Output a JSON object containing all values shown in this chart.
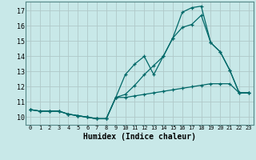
{
  "xlabel": "Humidex (Indice chaleur)",
  "background_color": "#c8e8e8",
  "grid_color": "#b0c8c8",
  "line_color": "#006868",
  "xlim": [
    -0.5,
    23.5
  ],
  "ylim": [
    9.5,
    17.6
  ],
  "xticks": [
    0,
    1,
    2,
    3,
    4,
    5,
    6,
    7,
    8,
    9,
    10,
    11,
    12,
    13,
    14,
    15,
    16,
    17,
    18,
    19,
    20,
    21,
    22,
    23
  ],
  "yticks": [
    10,
    11,
    12,
    13,
    14,
    15,
    16,
    17
  ],
  "line1_x": [
    0,
    1,
    2,
    3,
    4,
    5,
    6,
    7,
    8,
    9,
    10,
    11,
    12,
    13,
    14,
    15,
    16,
    17,
    18,
    19,
    20,
    21,
    22,
    23
  ],
  "line1_y": [
    10.5,
    10.4,
    10.4,
    10.4,
    10.2,
    10.1,
    10.0,
    9.9,
    9.9,
    11.3,
    11.3,
    11.4,
    11.5,
    11.6,
    11.7,
    11.8,
    11.9,
    12.0,
    12.1,
    12.2,
    12.2,
    12.2,
    11.6,
    11.6
  ],
  "line2_x": [
    0,
    1,
    2,
    3,
    4,
    5,
    6,
    7,
    8,
    9,
    10,
    11,
    12,
    13,
    14,
    15,
    16,
    17,
    18,
    19,
    20,
    21,
    22,
    23
  ],
  "line2_y": [
    10.5,
    10.4,
    10.4,
    10.4,
    10.2,
    10.1,
    10.0,
    9.9,
    9.9,
    11.3,
    12.8,
    13.5,
    14.0,
    12.8,
    14.0,
    15.2,
    15.9,
    16.1,
    16.7,
    14.9,
    14.3,
    13.1,
    11.6,
    11.6
  ],
  "line3_x": [
    0,
    1,
    2,
    3,
    4,
    5,
    6,
    7,
    8,
    9,
    10,
    11,
    12,
    13,
    14,
    15,
    16,
    17,
    18,
    19,
    20,
    21,
    22,
    23
  ],
  "line3_y": [
    10.5,
    10.4,
    10.4,
    10.4,
    10.2,
    10.1,
    10.0,
    9.9,
    9.9,
    11.3,
    11.5,
    12.1,
    12.8,
    13.4,
    14.0,
    15.2,
    16.9,
    17.2,
    17.3,
    14.9,
    14.3,
    13.1,
    11.6,
    11.6
  ]
}
